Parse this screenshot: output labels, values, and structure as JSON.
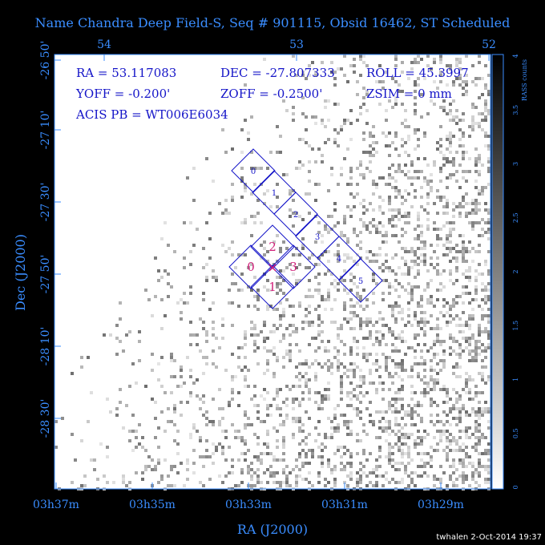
{
  "header": {
    "title": "Name Chandra Deep Field-S, Seq # 901115, Obsid 16462, ST Scheduled"
  },
  "info": {
    "ra": "RA = 53.117083",
    "dec": "DEC = -27.807333",
    "roll": "ROLL = 45.3997",
    "yoff": "YOFF =  -0.200'",
    "zoff": "ZOFF = -0.2500'",
    "zsim": "ZSIM = 0 mm",
    "acis_pb": "ACIS PB = WT006E6034"
  },
  "axes": {
    "top_ticks": [
      "54",
      "53",
      "52"
    ],
    "left_ticks": [
      "-26 50'",
      "-27 10'",
      "-27 30'",
      "-27 50'",
      "-28 10'",
      "-28 30'"
    ],
    "bottom_ticks": [
      "03h37m",
      "03h35m",
      "03h33m",
      "03h31m",
      "03h29m"
    ],
    "x_label": "RA (J2000)",
    "y_label": "Dec (J2000)"
  },
  "colorbar": {
    "label": "RASS counts",
    "ticks": [
      "0",
      "0.5",
      "1",
      "1.5",
      "2",
      "2.5",
      "3",
      "3.5",
      "4"
    ]
  },
  "acis_s_chips": [
    "0",
    "1",
    "2",
    "3",
    "4",
    "5"
  ],
  "acis_i_chips": [
    "2",
    "0",
    "3",
    "1"
  ],
  "footer": "twhalen  2-Oct-2014 19:37"
}
